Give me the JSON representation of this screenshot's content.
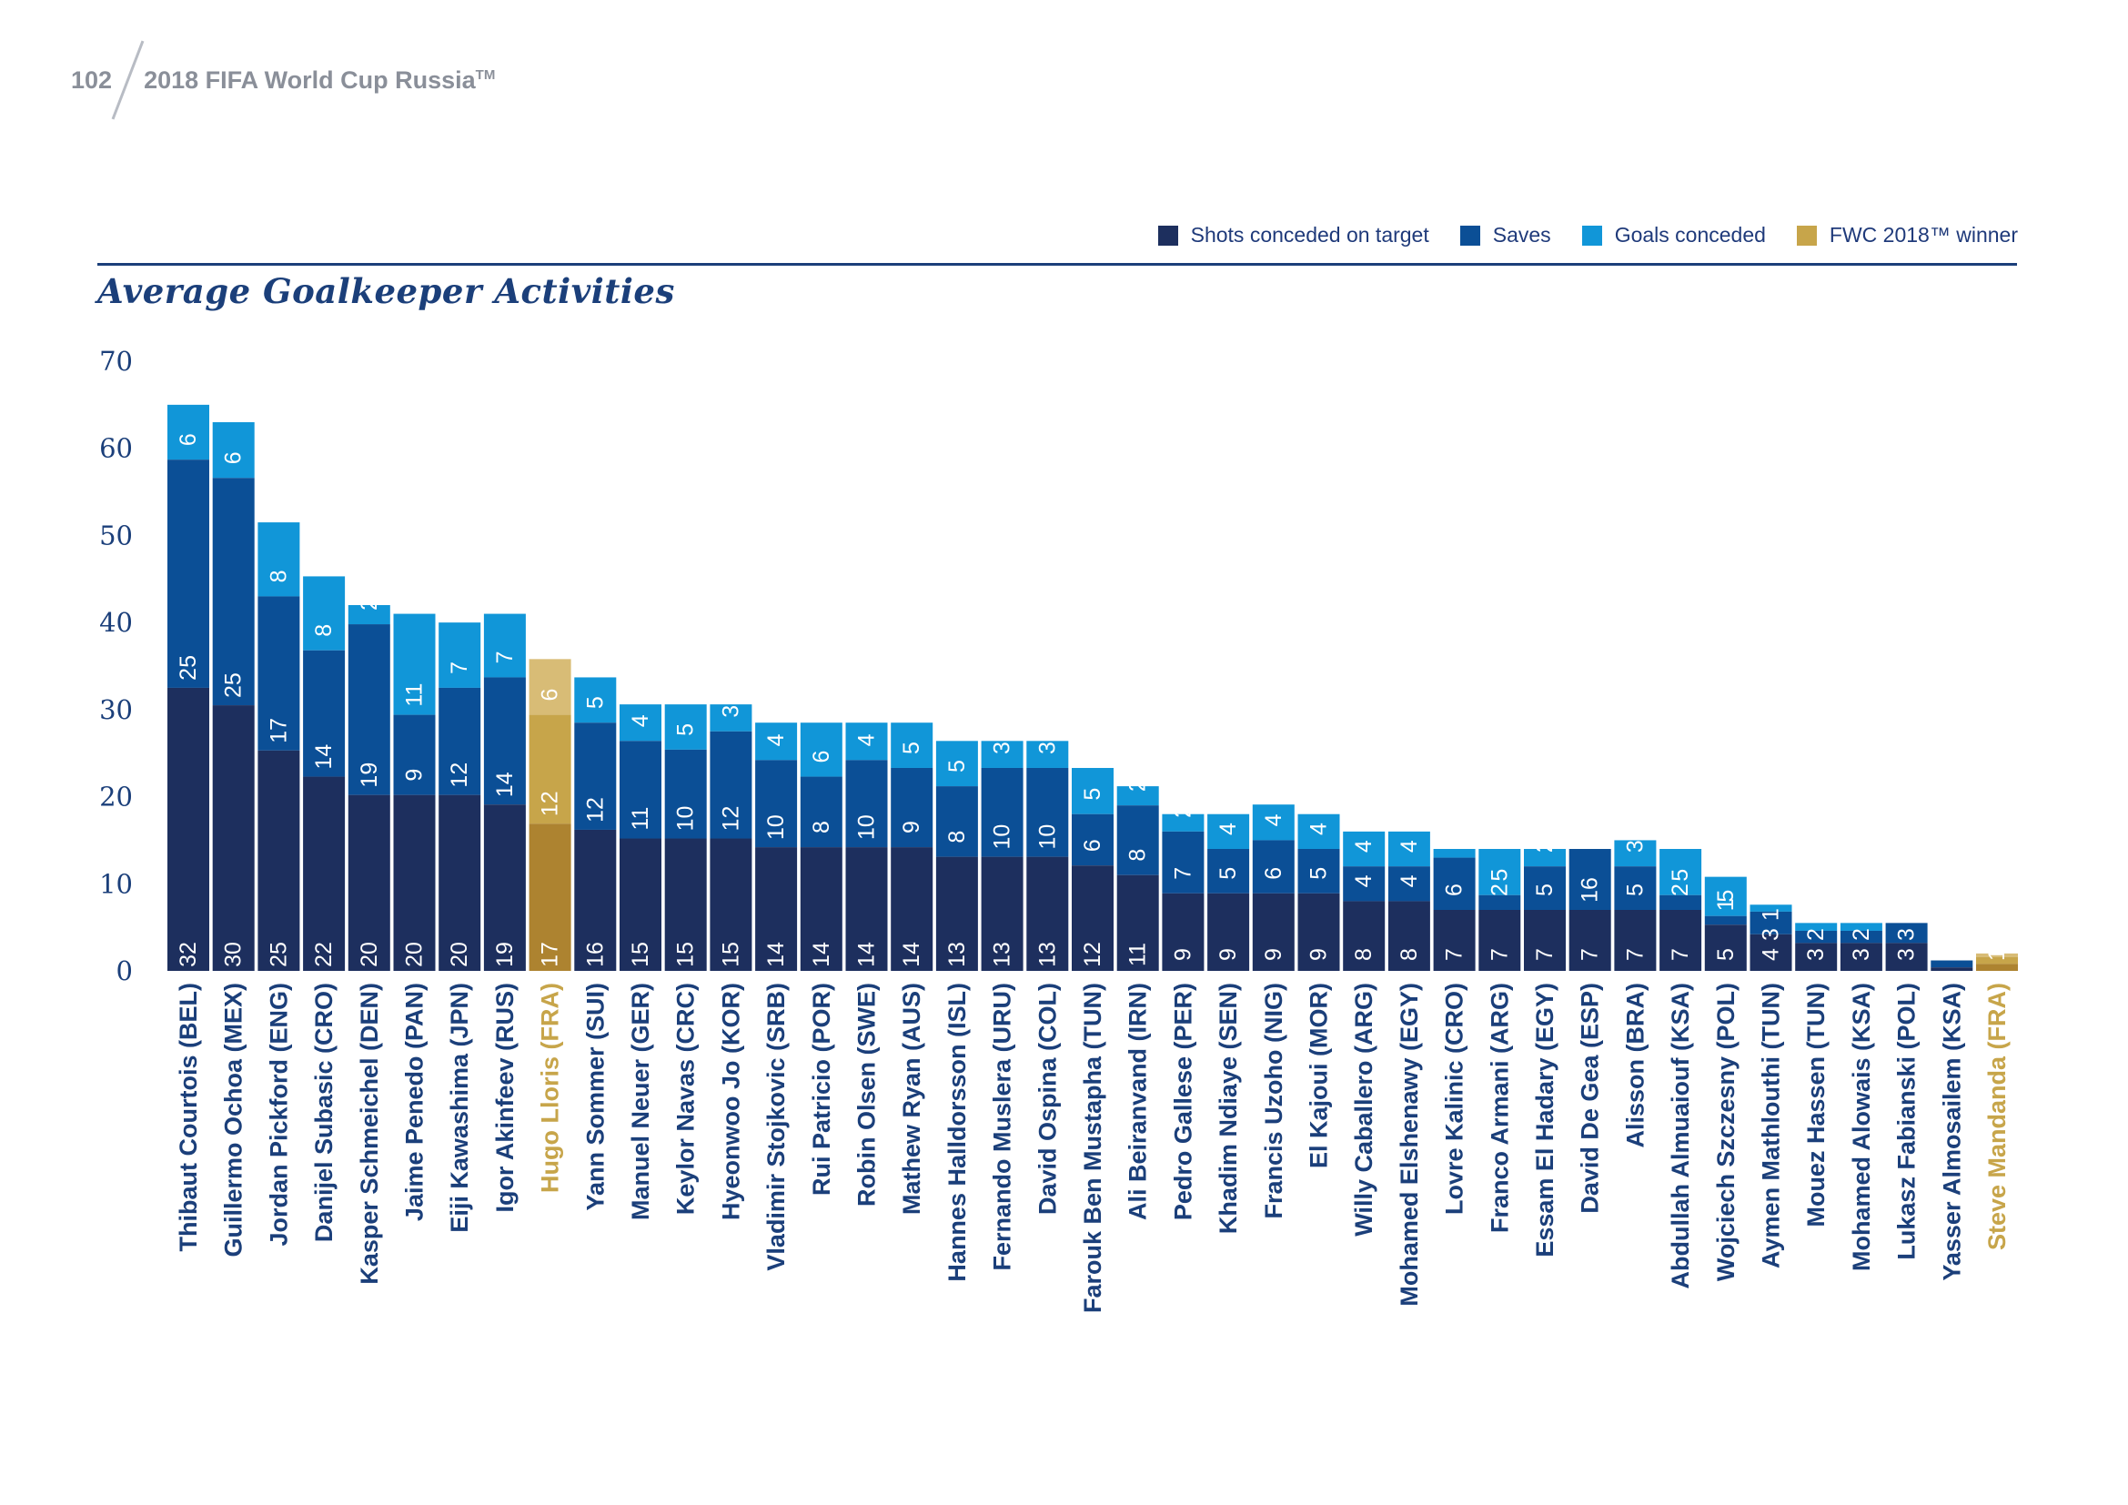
{
  "header": {
    "page_number": "102",
    "doc_title": "2018 FIFA World Cup Russia",
    "doc_title_tm": "TM"
  },
  "legend": [
    {
      "label": "Shots conceded on target",
      "color": "#1d2f5e"
    },
    {
      "label": "Saves",
      "color": "#0b4f96"
    },
    {
      "label": "Goals conceded",
      "color": "#1196d8"
    },
    {
      "label": "FWC 2018™ winner",
      "color": "#c7a54a"
    }
  ],
  "colors": {
    "shots": "#1d2f5e",
    "saves": "#0b4f96",
    "goals": "#1196d8",
    "winner_shots": "#ad8330",
    "winner_saves": "#c7a54a",
    "winner_goals": "#d8bc76",
    "label_normal": "#1b3f7a",
    "label_winner": "#c7a54a",
    "axis": "#1b3f7a"
  },
  "chart_data": {
    "type": "bar",
    "title": "Average Goalkeeper Activities",
    "ylim": [
      0,
      70
    ],
    "yticks": [
      0,
      10,
      20,
      30,
      40,
      50,
      60,
      70
    ],
    "stacked": false,
    "categories": [
      "Thibaut Courtois (BEL)",
      "Guillermo Ochoa (MEX)",
      "Jordan Pickford (ENG)",
      "Danijel Subasic (CRO)",
      "Kasper Schmeichel (DEN)",
      "Jaime Penedo (PAN)",
      "Eiji Kawashima (JPN)",
      "Igor Akinfeev (RUS)",
      "Hugo Lloris (FRA)",
      "Yann Sommer (SUI)",
      "Manuel Neuer (GER)",
      "Keylor Navas (CRC)",
      "Hyeonwoo Jo (KOR)",
      "Vladimir Stojkovic (SRB)",
      "Rui Patricio (POR)",
      "Robin Olsen (SWE)",
      "Mathew Ryan (AUS)",
      "Hannes Halldorsson (ISL)",
      "Fernando Muslera (URU)",
      "David Ospina (COL)",
      "Farouk Ben Mustapha (TUN)",
      "Ali Beiranvand (IRN)",
      "Pedro Gallese (PER)",
      "Khadim Ndiaye (SEN)",
      "Francis Uzoho (NIG)",
      "El Kajoui (MOR)",
      "Willy Caballero (ARG)",
      "Mohamed Elshenawy (EGY)",
      "Lovre Kalinic (CRO)",
      "Franco Armani (ARG)",
      "Essam El Hadary (EGY)",
      "David De Gea (ESP)",
      "Alisson (BRA)",
      "Abdullah Almuaiouf (KSA)",
      "Wojciech Szczesny (POL)",
      "Aymen Mathlouthi (TUN)",
      "Mouez Hassen (TUN)",
      "Mohamed Alowais (KSA)",
      "Lukasz Fabianski (POL)",
      "Yasser Almosailem (KSA)",
      "Steve Mandanda (FRA)"
    ],
    "winner_flags": [
      false,
      false,
      false,
      false,
      false,
      false,
      false,
      false,
      true,
      false,
      false,
      false,
      false,
      false,
      false,
      false,
      false,
      false,
      false,
      false,
      false,
      false,
      false,
      false,
      false,
      false,
      false,
      false,
      false,
      false,
      false,
      false,
      false,
      false,
      false,
      false,
      false,
      false,
      false,
      false,
      true
    ],
    "series": [
      {
        "name": "Shots conceded on target",
        "values": [
          32,
          30,
          25,
          22,
          20,
          20,
          20,
          19,
          17,
          16,
          15,
          15,
          15,
          14,
          14,
          14,
          14,
          13,
          13,
          13,
          12,
          11,
          9,
          9,
          9,
          9,
          8,
          8,
          7,
          7,
          7,
          7,
          7,
          7,
          5,
          4,
          3,
          3,
          3,
          1,
          1
        ]
      },
      {
        "name": "Saves",
        "values": [
          25,
          25,
          17,
          14,
          19,
          9,
          12,
          14,
          12,
          12,
          11,
          10,
          12,
          10,
          8,
          10,
          9,
          8,
          10,
          10,
          6,
          8,
          7,
          5,
          6,
          5,
          4,
          4,
          6,
          2,
          5,
          16,
          5,
          2,
          1,
          3,
          2,
          2,
          3,
          0,
          1
        ]
      },
      {
        "name": "Goals conceded",
        "values": [
          6,
          6,
          8,
          8,
          2,
          11,
          7,
          7,
          6,
          5,
          4,
          5,
          3,
          4,
          6,
          4,
          5,
          5,
          3,
          3,
          5,
          2,
          2,
          4,
          4,
          4,
          4,
          4,
          1,
          5,
          2,
          0,
          3,
          5,
          5,
          1,
          1,
          1,
          0,
          0,
          0
        ]
      }
    ],
    "bar_totals": [
      65,
      63,
      51.5,
      45.3,
      42,
      41,
      40,
      41,
      35.8,
      33.7,
      30.6,
      30.6,
      30.6,
      28.5,
      28.5,
      28.5,
      28.5,
      26.4,
      26.4,
      26.4,
      23.3,
      21.2,
      18,
      18,
      19.1,
      18,
      16,
      16,
      14,
      14,
      14,
      14,
      15,
      14,
      10.8,
      7.6,
      5.5,
      5.5,
      5.5,
      1.2,
      2
    ],
    "segment_tops": [
      [
        32.5,
        58.7
      ],
      [
        30.5,
        56.6
      ],
      [
        25.3,
        43
      ],
      [
        22.3,
        36.8
      ],
      [
        20.2,
        39.8
      ],
      [
        20.2,
        29.4
      ],
      [
        20.2,
        32.5
      ],
      [
        19.1,
        33.7
      ],
      [
        16.9,
        29.4
      ],
      [
        16.2,
        28.5
      ],
      [
        15.2,
        26.4
      ],
      [
        15.2,
        25.4
      ],
      [
        15.2,
        27.5
      ],
      [
        14.2,
        24.2
      ],
      [
        14.2,
        22.3
      ],
      [
        14.2,
        24.2
      ],
      [
        14.2,
        23.3
      ],
      [
        13.1,
        21.2
      ],
      [
        13.1,
        23.3
      ],
      [
        13.1,
        23.3
      ],
      [
        12.1,
        18
      ],
      [
        11,
        19
      ],
      [
        8.9,
        16
      ],
      [
        8.9,
        14
      ],
      [
        8.9,
        15
      ],
      [
        8.9,
        14
      ],
      [
        8,
        12
      ],
      [
        8,
        12
      ],
      [
        7,
        13
      ],
      [
        7,
        8.7
      ],
      [
        7,
        12
      ],
      [
        7,
        14
      ],
      [
        7,
        12
      ],
      [
        7,
        8.7
      ],
      [
        5.3,
        6.3
      ],
      [
        4.2,
        6.8
      ],
      [
        3.2,
        4.6
      ],
      [
        3.2,
        4.6
      ],
      [
        3.2,
        5.5
      ],
      [
        0.4,
        1.2
      ],
      [
        0.8,
        1.6
      ]
    ]
  }
}
